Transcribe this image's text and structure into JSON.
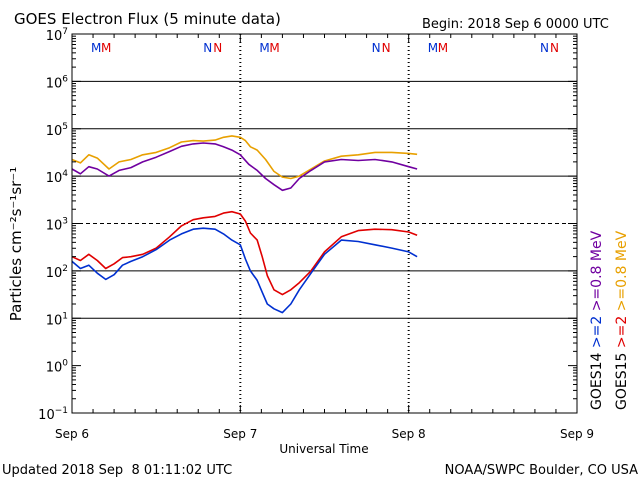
{
  "chart_data": {
    "type": "line",
    "title": "GOES Electron Flux (5 minute data)",
    "begin_label": "Begin: 2018 Sep 6 0000 UTC",
    "xlabel": "Universal Time",
    "ylabel": "Particles cm⁻²s⁻¹sr⁻¹",
    "yscale": "log",
    "ylim_exp": [
      -1,
      7
    ],
    "xlim_days": [
      0,
      3
    ],
    "x_unit": "days since 2018 Sep 6 0000 UTC",
    "x_ticks": [
      {
        "x": 0,
        "label": "Sep 6"
      },
      {
        "x": 1,
        "label": "Sep 7"
      },
      {
        "x": 2,
        "label": "Sep 8"
      },
      {
        "x": 3,
        "label": "Sep 9"
      }
    ],
    "y_ticks": [
      {
        "exp": 7
      },
      {
        "exp": 6
      },
      {
        "exp": 5
      },
      {
        "exp": 4
      },
      {
        "exp": 3
      },
      {
        "exp": 2
      },
      {
        "exp": 1
      },
      {
        "exp": 0
      },
      {
        "exp": -1
      }
    ],
    "grid_exps": [
      1,
      2,
      4,
      5,
      6
    ],
    "threshold_exp": 3,
    "series": [
      {
        "name": "GOES15 >=0.8 MeV",
        "color": "#e8a000",
        "points": [
          [
            0,
            4.35
          ],
          [
            0.05,
            4.28
          ],
          [
            0.1,
            4.45
          ],
          [
            0.15,
            4.38
          ],
          [
            0.22,
            4.15
          ],
          [
            0.28,
            4.3
          ],
          [
            0.35,
            4.35
          ],
          [
            0.42,
            4.45
          ],
          [
            0.5,
            4.5
          ],
          [
            0.58,
            4.6
          ],
          [
            0.65,
            4.72
          ],
          [
            0.72,
            4.75
          ],
          [
            0.78,
            4.74
          ],
          [
            0.85,
            4.76
          ],
          [
            0.9,
            4.82
          ],
          [
            0.95,
            4.85
          ],
          [
            1.0,
            4.82
          ],
          [
            1.03,
            4.75
          ],
          [
            1.06,
            4.62
          ],
          [
            1.1,
            4.55
          ],
          [
            1.15,
            4.35
          ],
          [
            1.2,
            4.1
          ],
          [
            1.25,
            3.98
          ],
          [
            1.3,
            3.95
          ],
          [
            1.35,
            4.0
          ],
          [
            1.42,
            4.15
          ],
          [
            1.5,
            4.32
          ],
          [
            1.6,
            4.42
          ],
          [
            1.7,
            4.45
          ],
          [
            1.8,
            4.5
          ],
          [
            1.9,
            4.5
          ],
          [
            2.0,
            4.48
          ],
          [
            2.05,
            4.46
          ]
        ]
      },
      {
        "name": "GOES14 >=0.8 MeV",
        "color": "#7000a0",
        "points": [
          [
            0,
            4.15
          ],
          [
            0.05,
            4.05
          ],
          [
            0.1,
            4.2
          ],
          [
            0.15,
            4.15
          ],
          [
            0.22,
            4.0
          ],
          [
            0.28,
            4.12
          ],
          [
            0.35,
            4.18
          ],
          [
            0.42,
            4.3
          ],
          [
            0.5,
            4.4
          ],
          [
            0.58,
            4.52
          ],
          [
            0.65,
            4.63
          ],
          [
            0.72,
            4.68
          ],
          [
            0.78,
            4.7
          ],
          [
            0.85,
            4.68
          ],
          [
            0.9,
            4.62
          ],
          [
            0.95,
            4.55
          ],
          [
            1.0,
            4.45
          ],
          [
            1.05,
            4.25
          ],
          [
            1.1,
            4.12
          ],
          [
            1.15,
            3.95
          ],
          [
            1.2,
            3.82
          ],
          [
            1.25,
            3.7
          ],
          [
            1.3,
            3.75
          ],
          [
            1.35,
            3.95
          ],
          [
            1.42,
            4.12
          ],
          [
            1.5,
            4.3
          ],
          [
            1.6,
            4.35
          ],
          [
            1.7,
            4.33
          ],
          [
            1.8,
            4.35
          ],
          [
            1.9,
            4.3
          ],
          [
            2.0,
            4.2
          ],
          [
            2.05,
            4.15
          ]
        ]
      },
      {
        "name": "GOES15 >=2 MeV",
        "color": "#e00000",
        "points": [
          [
            0,
            2.3
          ],
          [
            0.05,
            2.22
          ],
          [
            0.1,
            2.35
          ],
          [
            0.15,
            2.22
          ],
          [
            0.2,
            2.05
          ],
          [
            0.25,
            2.15
          ],
          [
            0.3,
            2.28
          ],
          [
            0.35,
            2.3
          ],
          [
            0.42,
            2.35
          ],
          [
            0.5,
            2.48
          ],
          [
            0.58,
            2.72
          ],
          [
            0.65,
            2.95
          ],
          [
            0.72,
            3.08
          ],
          [
            0.78,
            3.12
          ],
          [
            0.85,
            3.15
          ],
          [
            0.9,
            3.22
          ],
          [
            0.95,
            3.25
          ],
          [
            1.0,
            3.2
          ],
          [
            1.03,
            3.05
          ],
          [
            1.06,
            2.8
          ],
          [
            1.1,
            2.65
          ],
          [
            1.13,
            2.3
          ],
          [
            1.16,
            1.9
          ],
          [
            1.2,
            1.6
          ],
          [
            1.25,
            1.5
          ],
          [
            1.3,
            1.6
          ],
          [
            1.35,
            1.75
          ],
          [
            1.42,
            2.0
          ],
          [
            1.5,
            2.4
          ],
          [
            1.6,
            2.72
          ],
          [
            1.7,
            2.85
          ],
          [
            1.8,
            2.88
          ],
          [
            1.9,
            2.87
          ],
          [
            2.0,
            2.82
          ],
          [
            2.05,
            2.75
          ]
        ]
      },
      {
        "name": "GOES14 >=2 MeV",
        "color": "#0030d0",
        "points": [
          [
            0,
            2.2
          ],
          [
            0.05,
            2.05
          ],
          [
            0.1,
            2.12
          ],
          [
            0.15,
            1.95
          ],
          [
            0.2,
            1.82
          ],
          [
            0.25,
            1.92
          ],
          [
            0.3,
            2.12
          ],
          [
            0.35,
            2.2
          ],
          [
            0.42,
            2.3
          ],
          [
            0.5,
            2.45
          ],
          [
            0.58,
            2.65
          ],
          [
            0.65,
            2.78
          ],
          [
            0.72,
            2.88
          ],
          [
            0.78,
            2.9
          ],
          [
            0.85,
            2.88
          ],
          [
            0.9,
            2.78
          ],
          [
            0.95,
            2.65
          ],
          [
            1.0,
            2.55
          ],
          [
            1.03,
            2.25
          ],
          [
            1.06,
            2.0
          ],
          [
            1.1,
            1.8
          ],
          [
            1.13,
            1.55
          ],
          [
            1.16,
            1.3
          ],
          [
            1.2,
            1.2
          ],
          [
            1.25,
            1.12
          ],
          [
            1.3,
            1.3
          ],
          [
            1.35,
            1.6
          ],
          [
            1.42,
            1.95
          ],
          [
            1.5,
            2.35
          ],
          [
            1.6,
            2.65
          ],
          [
            1.7,
            2.62
          ],
          [
            1.8,
            2.55
          ],
          [
            1.9,
            2.48
          ],
          [
            2.0,
            2.4
          ],
          [
            2.05,
            2.3
          ]
        ]
      }
    ],
    "day_markers": [
      {
        "x": 0.1666,
        "labels": [
          {
            "text": "M",
            "color": "#0030d0"
          },
          {
            "text": "M",
            "color": "#e00000"
          }
        ]
      },
      {
        "x": 0.8333,
        "labels": [
          {
            "text": "N",
            "color": "#0030d0"
          },
          {
            "text": "N",
            "color": "#e00000"
          }
        ]
      },
      {
        "x": 1.1666,
        "labels": [
          {
            "text": "M",
            "color": "#0030d0"
          },
          {
            "text": "M",
            "color": "#e00000"
          }
        ]
      },
      {
        "x": 1.8333,
        "labels": [
          {
            "text": "N",
            "color": "#0030d0"
          },
          {
            "text": "N",
            "color": "#e00000"
          }
        ]
      },
      {
        "x": 2.1666,
        "labels": [
          {
            "text": "M",
            "color": "#0030d0"
          },
          {
            "text": "M",
            "color": "#e00000"
          }
        ]
      },
      {
        "x": 2.8333,
        "labels": [
          {
            "text": "N",
            "color": "#0030d0"
          },
          {
            "text": "N",
            "color": "#e00000"
          }
        ]
      }
    ],
    "legend": [
      {
        "sat": "GOES14",
        "label_08": ">=0.8 MeV",
        "label_2": ">=2",
        "color_08": "#7000a0",
        "color_2": "#0030d0"
      },
      {
        "sat": "GOES15",
        "label_08": ">=0.8 MeV",
        "label_2": ">=2",
        "color_08": "#e8a000",
        "color_2": "#e00000"
      }
    ],
    "footer_left": "Updated 2018 Sep  8 01:11:02 UTC",
    "footer_right": "NOAA/SWPC Boulder, CO USA"
  }
}
